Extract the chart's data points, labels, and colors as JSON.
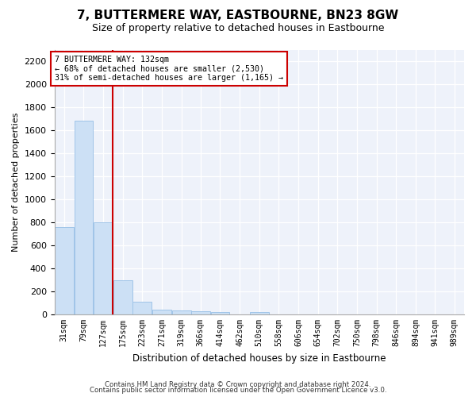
{
  "title": "7, BUTTERMERE WAY, EASTBOURNE, BN23 8GW",
  "subtitle": "Size of property relative to detached houses in Eastbourne",
  "xlabel": "Distribution of detached houses by size in Eastbourne",
  "ylabel": "Number of detached properties",
  "bin_labels": [
    "31sqm",
    "79sqm",
    "127sqm",
    "175sqm",
    "223sqm",
    "271sqm",
    "319sqm",
    "366sqm",
    "414sqm",
    "462sqm",
    "510sqm",
    "558sqm",
    "606sqm",
    "654sqm",
    "702sqm",
    "750sqm",
    "798sqm",
    "846sqm",
    "894sqm",
    "941sqm",
    "989sqm"
  ],
  "bin_edges": [
    31,
    79,
    127,
    175,
    223,
    271,
    319,
    366,
    414,
    462,
    510,
    558,
    606,
    654,
    702,
    750,
    798,
    846,
    894,
    941,
    989
  ],
  "bar_heights": [
    760,
    1680,
    800,
    300,
    110,
    45,
    32,
    28,
    22,
    0,
    22,
    0,
    0,
    0,
    0,
    0,
    0,
    0,
    0,
    0
  ],
  "bar_color": "#cce0f5",
  "bar_edgecolor": "#a0c4e8",
  "vline_x_index": 2,
  "vline_color": "#cc0000",
  "ylim_max": 2300,
  "yticks": [
    0,
    200,
    400,
    600,
    800,
    1000,
    1200,
    1400,
    1600,
    1800,
    2000,
    2200
  ],
  "annotation_text_line1": "7 BUTTERMERE WAY: 132sqm",
  "annotation_text_line2": "← 68% of detached houses are smaller (2,530)",
  "annotation_text_line3": "31% of semi-detached houses are larger (1,165) →",
  "annotation_box_facecolor": "#ffffff",
  "annotation_box_edgecolor": "#cc0000",
  "footer_line1": "Contains HM Land Registry data © Crown copyright and database right 2024.",
  "footer_line2": "Contains public sector information licensed under the Open Government Licence v3.0.",
  "bg_color": "#eef2fa",
  "title_fontsize": 11,
  "subtitle_fontsize": 9,
  "ylabel_fontsize": 8,
  "xlabel_fontsize": 8.5,
  "tick_fontsize": 7,
  "footer_fontsize": 6.2
}
